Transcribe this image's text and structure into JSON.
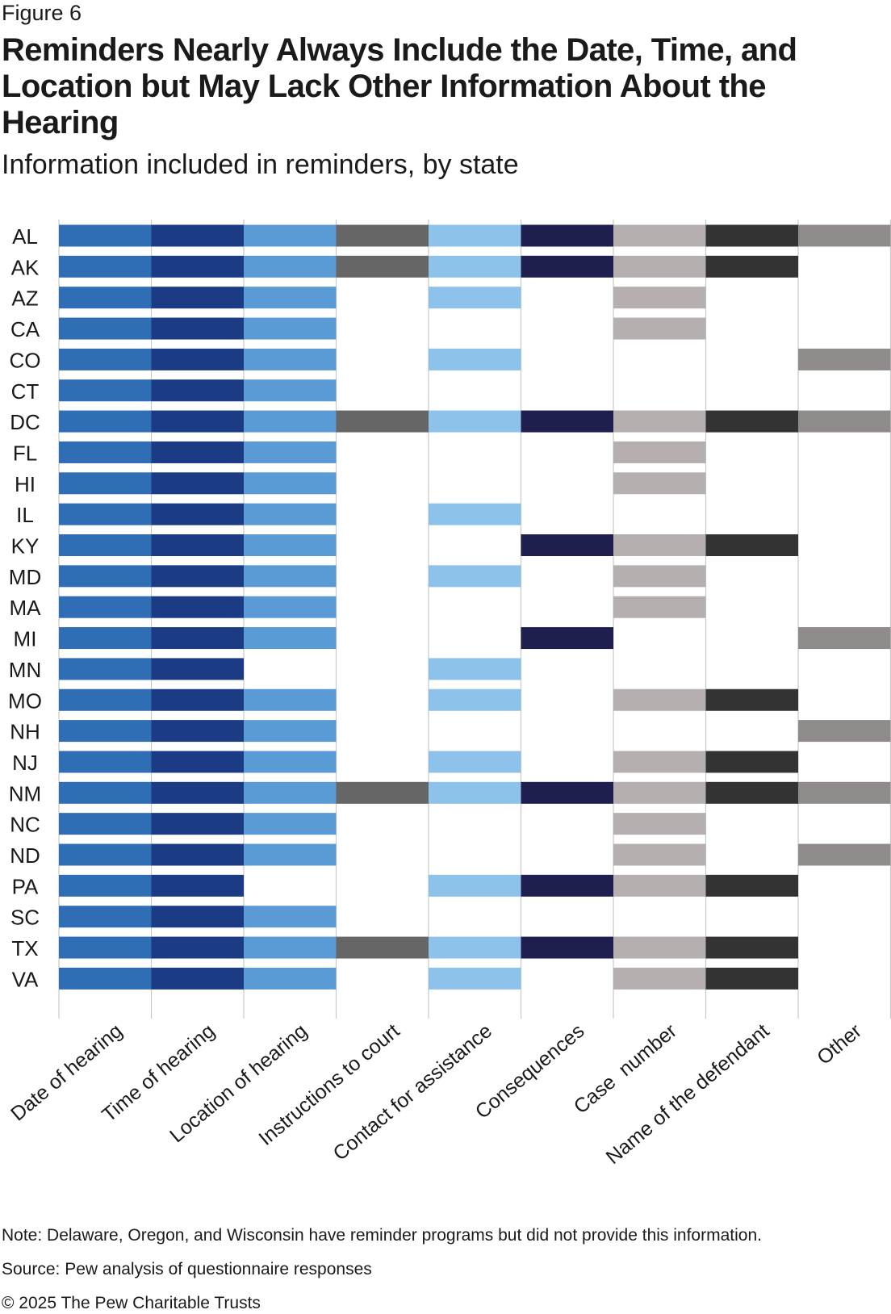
{
  "figure_label": "Figure 6",
  "footer": {
    "note": "Note: Delaware, Oregon, and Wisconsin have reminder programs but did not provide this information.",
    "source": "Source: Pew analysis of questionnaire responses",
    "copyright": "© 2025 The Pew Charitable Trusts"
  },
  "chart_data": {
    "type": "heatmap",
    "title": "Reminders Nearly Always Include the Date, Time, and Location but May Lack Other Information About the Hearing",
    "subtitle": "Information included in reminders, by state",
    "grid": true,
    "legend": "none",
    "columns": [
      {
        "label": "Date of hearing",
        "color": "#2f6db5"
      },
      {
        "label": "Time of hearing",
        "color": "#1b3c84"
      },
      {
        "label": "Location of hearing",
        "color": "#5b9bd5"
      },
      {
        "label": "Instructions to court",
        "color": "#666666"
      },
      {
        "label": "Contact for assistance",
        "color": "#8dc3ea"
      },
      {
        "label": "Consequences",
        "color": "#1f1f4f"
      },
      {
        "label": "Case  number",
        "color": "#b5afaf"
      },
      {
        "label": "Name of the defendant",
        "color": "#333333"
      },
      {
        "label": "Other",
        "color": "#8f8b8b"
      }
    ],
    "rows": [
      {
        "state": "AL",
        "values": [
          1,
          1,
          1,
          1,
          1,
          1,
          1,
          1,
          1
        ]
      },
      {
        "state": "AK",
        "values": [
          1,
          1,
          1,
          1,
          1,
          1,
          1,
          1,
          0
        ]
      },
      {
        "state": "AZ",
        "values": [
          1,
          1,
          1,
          0,
          1,
          0,
          1,
          0,
          0
        ]
      },
      {
        "state": "CA",
        "values": [
          1,
          1,
          1,
          0,
          0,
          0,
          1,
          0,
          0
        ]
      },
      {
        "state": "CO",
        "values": [
          1,
          1,
          1,
          0,
          1,
          0,
          0,
          0,
          1
        ]
      },
      {
        "state": "CT",
        "values": [
          1,
          1,
          1,
          0,
          0,
          0,
          0,
          0,
          0
        ]
      },
      {
        "state": "DC",
        "values": [
          1,
          1,
          1,
          1,
          1,
          1,
          1,
          1,
          1
        ]
      },
      {
        "state": "FL",
        "values": [
          1,
          1,
          1,
          0,
          0,
          0,
          1,
          0,
          0
        ]
      },
      {
        "state": "HI",
        "values": [
          1,
          1,
          1,
          0,
          0,
          0,
          1,
          0,
          0
        ]
      },
      {
        "state": "IL",
        "values": [
          1,
          1,
          1,
          0,
          1,
          0,
          0,
          0,
          0
        ]
      },
      {
        "state": "KY",
        "values": [
          1,
          1,
          1,
          0,
          0,
          1,
          1,
          1,
          0
        ]
      },
      {
        "state": "MD",
        "values": [
          1,
          1,
          1,
          0,
          1,
          0,
          1,
          0,
          0
        ]
      },
      {
        "state": "MA",
        "values": [
          1,
          1,
          1,
          0,
          0,
          0,
          1,
          0,
          0
        ]
      },
      {
        "state": "MI",
        "values": [
          1,
          1,
          1,
          0,
          0,
          1,
          0,
          0,
          1
        ]
      },
      {
        "state": "MN",
        "values": [
          1,
          1,
          0,
          0,
          1,
          0,
          0,
          0,
          0
        ]
      },
      {
        "state": "MO",
        "values": [
          1,
          1,
          1,
          0,
          1,
          0,
          1,
          1,
          0
        ]
      },
      {
        "state": "NH",
        "values": [
          1,
          1,
          1,
          0,
          0,
          0,
          0,
          0,
          1
        ]
      },
      {
        "state": "NJ",
        "values": [
          1,
          1,
          1,
          0,
          1,
          0,
          1,
          1,
          0
        ]
      },
      {
        "state": "NM",
        "values": [
          1,
          1,
          1,
          1,
          1,
          1,
          1,
          1,
          1
        ]
      },
      {
        "state": "NC",
        "values": [
          1,
          1,
          1,
          0,
          0,
          0,
          1,
          0,
          0
        ]
      },
      {
        "state": "ND",
        "values": [
          1,
          1,
          1,
          0,
          0,
          0,
          1,
          0,
          1
        ]
      },
      {
        "state": "PA",
        "values": [
          1,
          1,
          0,
          0,
          1,
          1,
          1,
          1,
          0
        ]
      },
      {
        "state": "SC",
        "values": [
          1,
          1,
          1,
          0,
          0,
          0,
          0,
          0,
          0
        ]
      },
      {
        "state": "TX",
        "values": [
          1,
          1,
          1,
          1,
          1,
          1,
          1,
          1,
          0
        ]
      },
      {
        "state": "VA",
        "values": [
          1,
          1,
          1,
          0,
          1,
          0,
          1,
          1,
          0
        ]
      }
    ]
  }
}
